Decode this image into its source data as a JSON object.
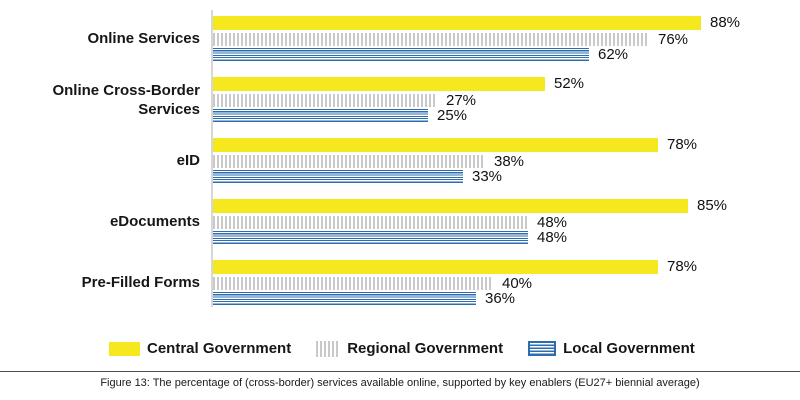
{
  "chart_data": {
    "type": "bar",
    "orientation": "horizontal",
    "title": "",
    "categories": [
      "Online Services",
      "Online Cross-Border Services",
      "eID",
      "eDocuments",
      "Pre-Filled Forms"
    ],
    "series": [
      {
        "name": "Central Government",
        "pattern": "solid",
        "color": "#f5e81f",
        "values": [
          88,
          52,
          78,
          85,
          78
        ]
      },
      {
        "name": "Regional Government",
        "pattern": "vertical-stripes",
        "color": "#c9c9c9",
        "values": [
          76,
          27,
          38,
          48,
          40
        ]
      },
      {
        "name": "Local Government",
        "pattern": "horizontal-stripes",
        "color": "#2e6cb0",
        "values": [
          62,
          25,
          33,
          48,
          36
        ]
      }
    ],
    "value_suffix": "%",
    "value_labels_shown": true,
    "grid": false,
    "legend_position": "bottom"
  },
  "caption": "Figure 13: The percentage of (cross-border) services available online, supported by key enablers (EU27+ biennial average)"
}
